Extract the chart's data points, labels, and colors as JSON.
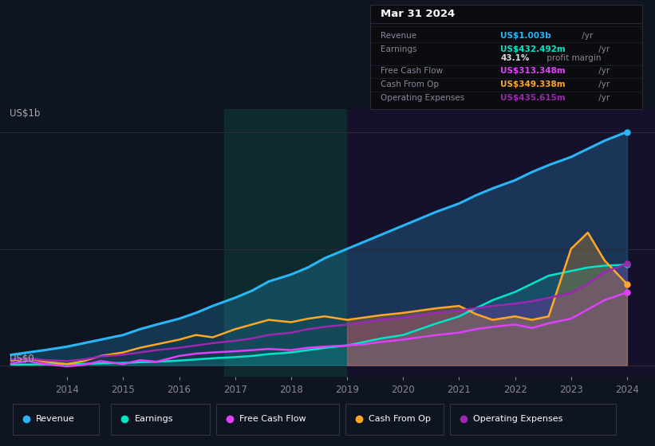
{
  "bg_color": "#0e1420",
  "plot_bg_color": "#0e1420",
  "title_box_bg": "#0a0c10",
  "title_box_border": "#2a2a3a",
  "ylabel": "US$1b",
  "y0_label": "US$0",
  "x_ticks": [
    2014,
    2015,
    2016,
    2017,
    2018,
    2019,
    2020,
    2021,
    2022,
    2023,
    2024
  ],
  "years": [
    2013.0,
    2013.3,
    2013.6,
    2014.0,
    2014.3,
    2014.6,
    2015.0,
    2015.3,
    2015.6,
    2016.0,
    2016.3,
    2016.6,
    2017.0,
    2017.3,
    2017.6,
    2018.0,
    2018.3,
    2018.6,
    2019.0,
    2019.3,
    2019.6,
    2020.0,
    2020.3,
    2020.6,
    2021.0,
    2021.3,
    2021.6,
    2022.0,
    2022.3,
    2022.6,
    2023.0,
    2023.3,
    2023.6,
    2024.0
  ],
  "revenue": [
    0.045,
    0.055,
    0.065,
    0.08,
    0.095,
    0.11,
    0.13,
    0.155,
    0.175,
    0.2,
    0.225,
    0.255,
    0.29,
    0.32,
    0.36,
    0.39,
    0.42,
    0.46,
    0.5,
    0.53,
    0.56,
    0.6,
    0.63,
    0.66,
    0.695,
    0.73,
    0.76,
    0.795,
    0.83,
    0.86,
    0.895,
    0.93,
    0.965,
    1.003
  ],
  "earnings": [
    0.003,
    0.003,
    0.004,
    0.005,
    0.006,
    0.008,
    0.01,
    0.013,
    0.015,
    0.02,
    0.025,
    0.03,
    0.035,
    0.04,
    0.048,
    0.055,
    0.065,
    0.075,
    0.085,
    0.1,
    0.115,
    0.13,
    0.155,
    0.18,
    0.21,
    0.245,
    0.28,
    0.315,
    0.35,
    0.385,
    0.405,
    0.42,
    0.428,
    0.432
  ],
  "free_cash_flow": [
    0.008,
    0.018,
    0.005,
    -0.005,
    0.002,
    0.018,
    0.005,
    0.022,
    0.015,
    0.04,
    0.05,
    0.055,
    0.06,
    0.065,
    0.07,
    0.065,
    0.075,
    0.08,
    0.085,
    0.09,
    0.1,
    0.11,
    0.12,
    0.13,
    0.14,
    0.155,
    0.165,
    0.175,
    0.16,
    0.18,
    0.2,
    0.24,
    0.28,
    0.313
  ],
  "cash_from_op": [
    0.02,
    0.03,
    0.015,
    0.005,
    0.018,
    0.04,
    0.055,
    0.075,
    0.09,
    0.11,
    0.13,
    0.12,
    0.155,
    0.175,
    0.195,
    0.185,
    0.2,
    0.21,
    0.195,
    0.205,
    0.215,
    0.225,
    0.235,
    0.245,
    0.255,
    0.22,
    0.195,
    0.21,
    0.195,
    0.21,
    0.5,
    0.57,
    0.45,
    0.349
  ],
  "op_expenses": [
    0.025,
    0.03,
    0.022,
    0.018,
    0.025,
    0.038,
    0.045,
    0.055,
    0.065,
    0.075,
    0.085,
    0.095,
    0.105,
    0.115,
    0.13,
    0.14,
    0.155,
    0.165,
    0.175,
    0.185,
    0.195,
    0.205,
    0.215,
    0.225,
    0.235,
    0.245,
    0.255,
    0.265,
    0.275,
    0.29,
    0.31,
    0.35,
    0.4,
    0.436
  ],
  "revenue_color": "#29b6f6",
  "earnings_color": "#00e5c8",
  "fcf_color": "#e040fb",
  "cashop_color": "#ffa726",
  "opex_color": "#9c27b0",
  "title_box": {
    "date": "Mar 31 2024",
    "rows": [
      {
        "label": "Revenue",
        "value": "US$1.003b",
        "value_color": "#29b6f6",
        "suffix": " /yr"
      },
      {
        "label": "Earnings",
        "value": "US$432.492m",
        "value_color": "#00e5c8",
        "suffix": " /yr"
      },
      {
        "label": "",
        "value": "43.1%",
        "value_color": "#dddddd",
        "suffix": " profit margin"
      },
      {
        "label": "Free Cash Flow",
        "value": "US$313.348m",
        "value_color": "#e040fb",
        "suffix": " /yr"
      },
      {
        "label": "Cash From Op",
        "value": "US$349.338m",
        "value_color": "#ffa726",
        "suffix": " /yr"
      },
      {
        "label": "Operating Expenses",
        "value": "US$435.615m",
        "value_color": "#9c27b0",
        "suffix": " /yr"
      }
    ]
  },
  "legend_items": [
    {
      "label": "Revenue",
      "color": "#29b6f6"
    },
    {
      "label": "Earnings",
      "color": "#00e5c8"
    },
    {
      "label": "Free Cash Flow",
      "color": "#e040fb"
    },
    {
      "label": "Cash From Op",
      "color": "#ffa726"
    },
    {
      "label": "Operating Expenses",
      "color": "#9c27b0"
    }
  ]
}
